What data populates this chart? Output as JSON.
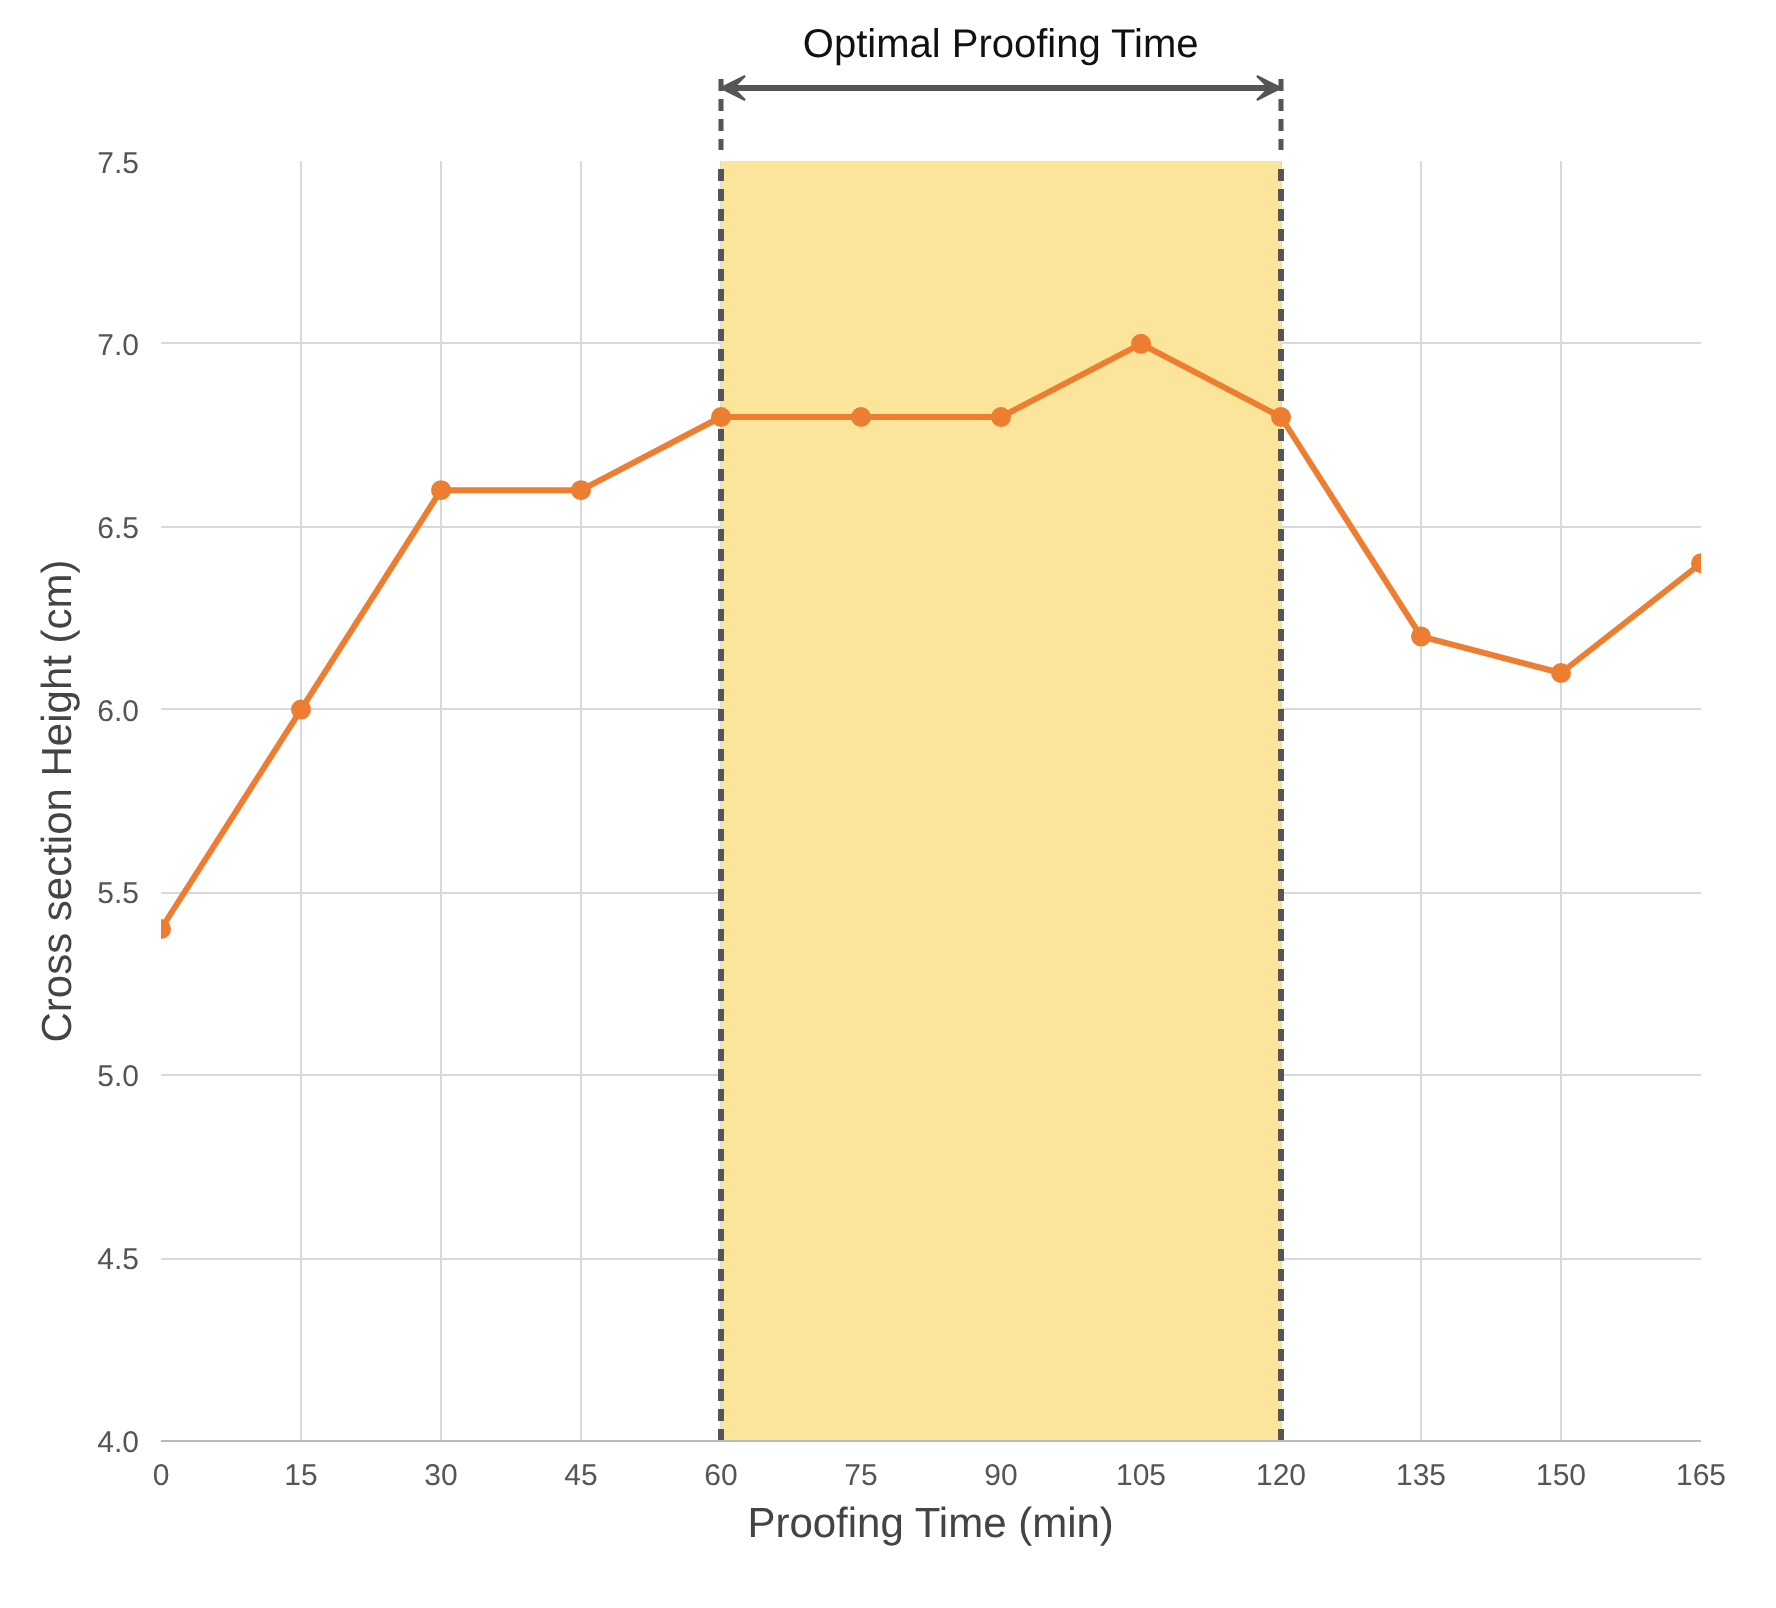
{
  "chart_data": {
    "type": "line",
    "xlabel": "Proofing Time (min)",
    "ylabel": "Cross section Height (cm)",
    "x": [
      0,
      15,
      30,
      45,
      60,
      75,
      90,
      105,
      120,
      135,
      150,
      165
    ],
    "series": [
      {
        "color": "#ed7d31",
        "values": [
          5.4,
          6.0,
          6.6,
          6.6,
          6.8,
          6.8,
          6.8,
          7.0,
          6.8,
          6.2,
          6.1,
          6.4
        ]
      }
    ],
    "xlim": [
      0,
      165
    ],
    "xticks": [
      0,
      15,
      30,
      45,
      60,
      75,
      90,
      105,
      120,
      135,
      150,
      165
    ],
    "ylim": [
      4,
      7.5
    ],
    "yticks": [
      {
        "value": 4,
        "label": "4.0"
      },
      {
        "value": 4.5,
        "label": "4.5"
      },
      {
        "value": 5,
        "label": "5.0"
      },
      {
        "value": 5.5,
        "label": "5.5"
      },
      {
        "value": 6,
        "label": "6.0"
      },
      {
        "value": 6.5,
        "label": "6.5"
      },
      {
        "value": 7,
        "label": "7.0"
      },
      {
        "value": 7.5,
        "label": "7.5"
      }
    ],
    "bands": [
      {
        "axis": "x",
        "from": 60,
        "to": 120,
        "label": "Optimal Proofing Time",
        "color": "#fbe59a"
      }
    ],
    "grid": true,
    "marker": "circle",
    "line_style": "solid"
  }
}
